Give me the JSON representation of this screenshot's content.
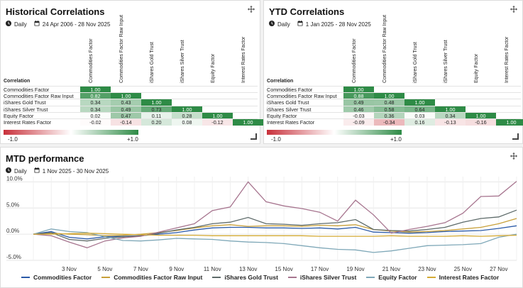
{
  "historical": {
    "title": "Historical Correlations",
    "frequency": "Daily",
    "range": "24 Apr 2006 - 28 Nov 2025",
    "corr_label": "Correlation",
    "columns": [
      "Commodities Factor",
      "Commodities Factor Raw Input",
      "iShares Gold Trust",
      "iShares Silver Trust",
      "Equity Factor",
      "Interest Rates Factor"
    ],
    "rows": [
      {
        "label": "Commodities Factor",
        "values": [
          "1.00"
        ]
      },
      {
        "label": "Commodities Factor Raw Input",
        "values": [
          "0.82",
          "1.00"
        ]
      },
      {
        "label": "iShares Gold Trust",
        "values": [
          "0.34",
          "0.43",
          "1.00"
        ]
      },
      {
        "label": "iShares Silver Trust",
        "values": [
          "0.34",
          "0.49",
          "0.73",
          "1.00"
        ]
      },
      {
        "label": "Equity Factor",
        "values": [
          "0.02",
          "0.47",
          "0.11",
          "0.28",
          "1.00"
        ]
      },
      {
        "label": "Interest Rates Factor",
        "values": [
          "-0.02",
          "-0.14",
          "0.20",
          "0.08",
          "-0.12",
          "1.00"
        ]
      }
    ],
    "legend_min": "-1.0",
    "legend_max": "+1.0"
  },
  "ytd": {
    "title": "YTD Correlations",
    "frequency": "Daily",
    "range": "1 Jan 2025 - 28 Nov 2025",
    "corr_label": "Correlation",
    "columns": [
      "Commodities Factor",
      "Commodities Factor Raw Input",
      "iShares Gold Trust",
      "iShares Silver Trust",
      "Equity Factor",
      "Interest Rates Factor"
    ],
    "rows": [
      {
        "label": "Commodities Factor",
        "values": [
          "1.00"
        ]
      },
      {
        "label": "Commodities Factor Raw Input",
        "values": [
          "0.88",
          "1.00"
        ]
      },
      {
        "label": "iShares Gold Trust",
        "values": [
          "0.49",
          "0.48",
          "1.00"
        ]
      },
      {
        "label": "iShares Silver Trust",
        "values": [
          "0.46",
          "0.58",
          "0.64",
          "1.00"
        ]
      },
      {
        "label": "Equity Factor",
        "values": [
          "-0.03",
          "0.36",
          "0.03",
          "0.34",
          "1.00"
        ]
      },
      {
        "label": "Interest Rates Factor",
        "values": [
          "-0.09",
          "-0.34",
          "0.16",
          "-0.13",
          "-0.16",
          "1.00"
        ]
      }
    ],
    "legend_min": "-1.0",
    "legend_max": "+1.0"
  },
  "mtd": {
    "title": "MTD performance",
    "frequency": "Daily",
    "range": "1 Nov 2025 - 30 Nov 2025"
  },
  "colors": {
    "positive": "#2e8b46",
    "negative": "#c8303a"
  },
  "chart_data": {
    "type": "line",
    "title": "MTD performance",
    "x": [
      "1 Nov",
      "2 Nov",
      "3 Nov",
      "4 Nov",
      "5 Nov",
      "6 Nov",
      "7 Nov",
      "8 Nov",
      "9 Nov",
      "10 Nov",
      "11 Nov",
      "12 Nov",
      "13 Nov",
      "14 Nov",
      "15 Nov",
      "16 Nov",
      "17 Nov",
      "18 Nov",
      "19 Nov",
      "20 Nov",
      "21 Nov",
      "22 Nov",
      "23 Nov",
      "24 Nov",
      "25 Nov",
      "26 Nov",
      "27 Nov",
      "28 Nov"
    ],
    "xticks": [
      "3 Nov",
      "5 Nov",
      "7 Nov",
      "9 Nov",
      "11 Nov",
      "13 Nov",
      "15 Nov",
      "17 Nov",
      "19 Nov",
      "21 Nov",
      "23 Nov",
      "25 Nov",
      "27 Nov"
    ],
    "yticks": [
      "10.0%",
      "5.0%",
      "0.0%",
      "-5.0%"
    ],
    "ytick_values": [
      10,
      5,
      0,
      -5
    ],
    "ylim": [
      -5,
      11
    ],
    "series": [
      {
        "name": "Commodities Factor",
        "color": "#2b5aa8",
        "values": [
          0,
          0.5,
          -0.6,
          -0.9,
          -0.5,
          -0.4,
          -0.3,
          0,
          0.3,
          0.8,
          1.2,
          1.3,
          1.3,
          1.2,
          1.2,
          1.1,
          1.2,
          1.0,
          1.3,
          0.4,
          0.3,
          0.2,
          0.3,
          0.5,
          0.6,
          0.7,
          1.1,
          1.6
        ]
      },
      {
        "name": "Commodities Factor Raw Input",
        "color": "#c8a03a",
        "values": [
          0,
          0.2,
          0,
          -0.1,
          -0.3,
          -0.2,
          0,
          0.3,
          0.7,
          1.2,
          1.6,
          1.8,
          1.5,
          1.6,
          1.6,
          1.5,
          1.7,
          1.6,
          1.8,
          0.9,
          0.6,
          0.4,
          0.5,
          0.7,
          1.0,
          1.3,
          2.0,
          3.0
        ]
      },
      {
        "name": "iShares Gold Trust",
        "color": "#5e6b6a",
        "values": [
          0,
          0.3,
          -1.0,
          -1.3,
          -0.8,
          -0.5,
          -0.3,
          0.2,
          0.8,
          1.3,
          2.0,
          2.3,
          3.2,
          2.0,
          1.9,
          1.7,
          2.0,
          2.2,
          2.8,
          0.9,
          0.7,
          0.6,
          0.9,
          1.3,
          2.3,
          3.0,
          3.3,
          4.6
        ]
      },
      {
        "name": "iShares Silver Trust",
        "color": "#a7758f",
        "values": [
          0,
          -0.3,
          -1.5,
          -2.6,
          -1.3,
          -0.7,
          -0.4,
          0.4,
          1.2,
          2.0,
          4.5,
          5.2,
          10.0,
          6.2,
          5.4,
          4.9,
          4.2,
          2.5,
          6.5,
          3.7,
          0.2,
          0.9,
          1.5,
          2.2,
          4.0,
          7.2,
          7.3,
          10.1
        ]
      },
      {
        "name": "Equity Factor",
        "color": "#7fa8b8",
        "values": [
          0,
          1.0,
          0.5,
          0.3,
          -0.5,
          -1.2,
          -1.3,
          -1.1,
          -0.8,
          -0.9,
          -1.0,
          -1.3,
          -1.5,
          -1.6,
          -1.8,
          -2.2,
          -2.6,
          -2.9,
          -3.0,
          -3.5,
          -3.2,
          -2.7,
          -2.2,
          -2.1,
          -2.0,
          -1.8,
          -0.6,
          0.0
        ]
      },
      {
        "name": "Interest Rates Factor",
        "color": "#d4aa35",
        "values": [
          0,
          0,
          0.1,
          0.2,
          0.1,
          0,
          -0.1,
          -0.2,
          -0.2,
          -0.2,
          -0.3,
          -0.3,
          -0.3,
          -0.3,
          -0.3,
          -0.3,
          -0.4,
          -0.4,
          -0.4,
          -0.4,
          -0.3,
          -0.4,
          -0.4,
          -0.4,
          -0.3,
          -0.4,
          -0.3,
          -0.2
        ]
      }
    ]
  }
}
